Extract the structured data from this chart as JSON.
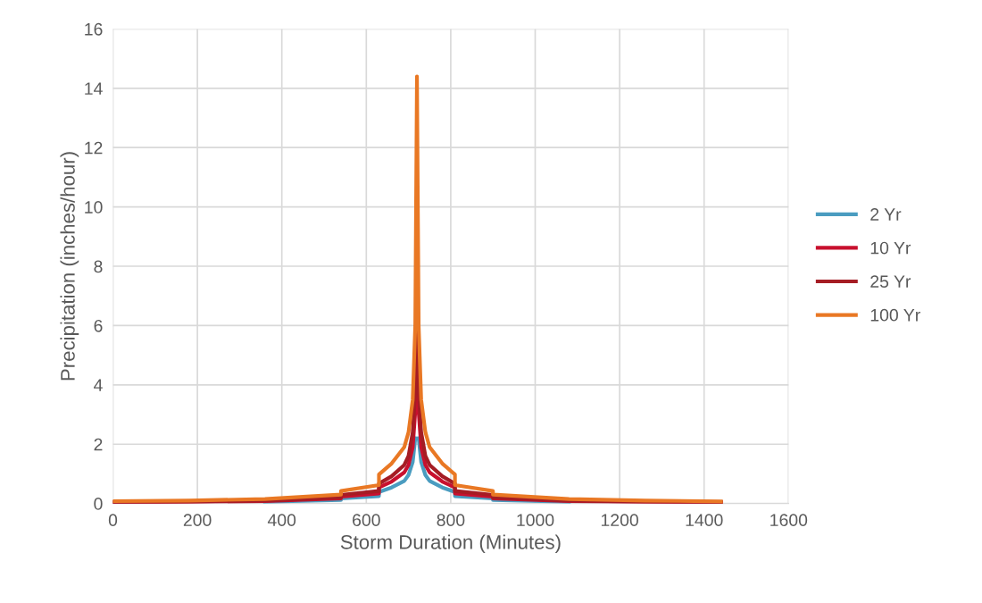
{
  "chart_data": {
    "type": "line",
    "xlabel": "Storm Duration (Minutes)",
    "ylabel": "Precipitation (inches/hour)",
    "x": [
      0,
      180,
      360,
      540,
      540,
      630,
      630,
      660,
      690,
      700,
      710,
      716,
      720,
      724,
      730,
      740,
      750,
      780,
      810,
      810,
      900,
      900,
      1080,
      1260,
      1440
    ],
    "series": [
      {
        "name": "2 Yr",
        "color": "#4a9cc0",
        "values": [
          null,
          null,
          0.06,
          0.12,
          0.17,
          0.25,
          0.39,
          0.54,
          0.76,
          0.96,
          1.4,
          2.2,
          null,
          2.2,
          1.4,
          0.96,
          0.76,
          0.54,
          0.39,
          0.25,
          0.17,
          0.12,
          0.06,
          null,
          null
        ]
      },
      {
        "name": "10 Yr",
        "color": "#c8102e",
        "values": [
          0.04,
          0.06,
          0.08,
          0.17,
          0.23,
          0.34,
          0.54,
          0.74,
          1.05,
          1.3,
          1.9,
          3.1,
          5.2,
          3.1,
          1.9,
          1.3,
          1.05,
          0.74,
          0.54,
          0.34,
          0.23,
          0.17,
          0.08,
          0.06,
          0.04
        ]
      },
      {
        "name": "25 Yr",
        "color": "#a51c24",
        "values": [
          0.05,
          0.07,
          0.1,
          0.2,
          0.29,
          0.42,
          0.67,
          0.92,
          1.3,
          1.6,
          2.4,
          3.8,
          6.2,
          3.8,
          2.4,
          1.6,
          1.3,
          0.92,
          0.67,
          0.42,
          0.29,
          0.2,
          0.1,
          0.07,
          0.05
        ]
      },
      {
        "name": "100 Yr",
        "color": "#e97824",
        "values": [
          0.08,
          0.1,
          0.15,
          0.3,
          0.42,
          0.62,
          0.98,
          1.35,
          1.9,
          2.4,
          3.5,
          6,
          14.4,
          6,
          3.5,
          2.4,
          1.9,
          1.35,
          0.98,
          0.62,
          0.42,
          0.3,
          0.15,
          0.1,
          0.07
        ]
      }
    ],
    "xlim": [
      0,
      1600
    ],
    "xticks": [
      0,
      200,
      400,
      600,
      800,
      1000,
      1200,
      1400,
      1600
    ],
    "ylim": [
      0,
      16
    ],
    "yticks": [
      0,
      2,
      4,
      6,
      8,
      10,
      12,
      14,
      16
    ],
    "grid": true,
    "legend": "right",
    "marker": "none",
    "line_style": "solid"
  }
}
